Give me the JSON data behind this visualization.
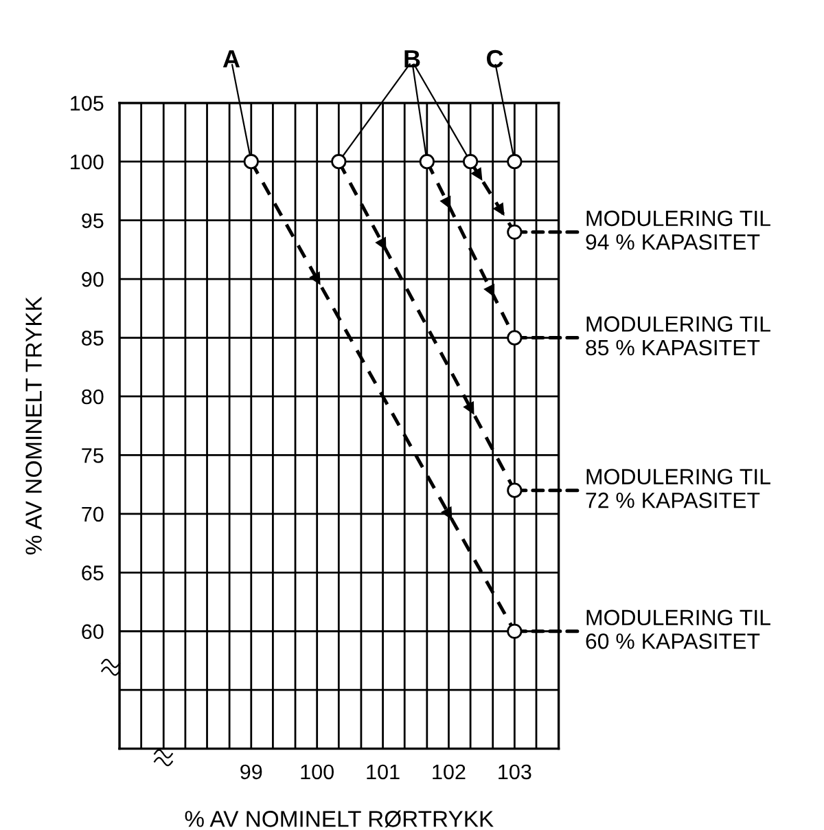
{
  "chart_data": {
    "type": "line",
    "xlabel": "% AV NOMINELT RØRTRYKK",
    "ylabel": "% AV NOMINELT TRYKK",
    "series": [
      {
        "name": "A",
        "color": "#000000",
        "x": [
          99,
          103
        ],
        "values": [
          100,
          60
        ]
      },
      {
        "name": "B",
        "color": "#000000",
        "x": [
          100.33,
          103,
          null,
          101.67,
          103,
          null,
          102.33,
          103
        ],
        "values": [
          100,
          72,
          null,
          100,
          85,
          null,
          100,
          94
        ]
      },
      {
        "name": "C",
        "color": "#000000",
        "type": "scatter",
        "x": [
          103
        ],
        "values": [
          100
        ]
      }
    ],
    "annotations": [
      "MODULERING TIL\n94 % KAPASITET",
      "MODULERING TIL\n85 % KAPASITET",
      "MODULERING TIL\n72 % KAPASITET",
      "MODULERING TIL\n60 % KAPASITET"
    ],
    "marker": "circle",
    "line_style": "dashed",
    "grid": true,
    "xlim": [
      97,
      103.67
    ],
    "ylim": [
      50,
      105
    ],
    "xticks": [
      {
        "value": 97,
        "label": null
      },
      {
        "value": 97.33,
        "label": null
      },
      {
        "value": 97.67,
        "label": null
      },
      {
        "value": 98,
        "label": null
      },
      {
        "value": 98.33,
        "label": null
      },
      {
        "value": 98.67,
        "label": null
      },
      99,
      {
        "value": 99.33,
        "label": null
      },
      {
        "value": 99.67,
        "label": null
      },
      100,
      {
        "value": 100.33,
        "label": null
      },
      {
        "value": 100.67,
        "label": null
      },
      101,
      {
        "value": 101.33,
        "label": null
      },
      {
        "value": 101.67,
        "label": null
      },
      102,
      {
        "value": 102.33,
        "label": null
      },
      {
        "value": 102.67,
        "label": null
      },
      103,
      {
        "value": 103.33,
        "label": null
      },
      {
        "value": 103.67,
        "label": null
      }
    ],
    "yticks": [
      {
        "value": 50,
        "label": null
      },
      {
        "value": 55,
        "label": null
      },
      60,
      65,
      70,
      75,
      80,
      85,
      90,
      95,
      100,
      105
    ]
  }
}
